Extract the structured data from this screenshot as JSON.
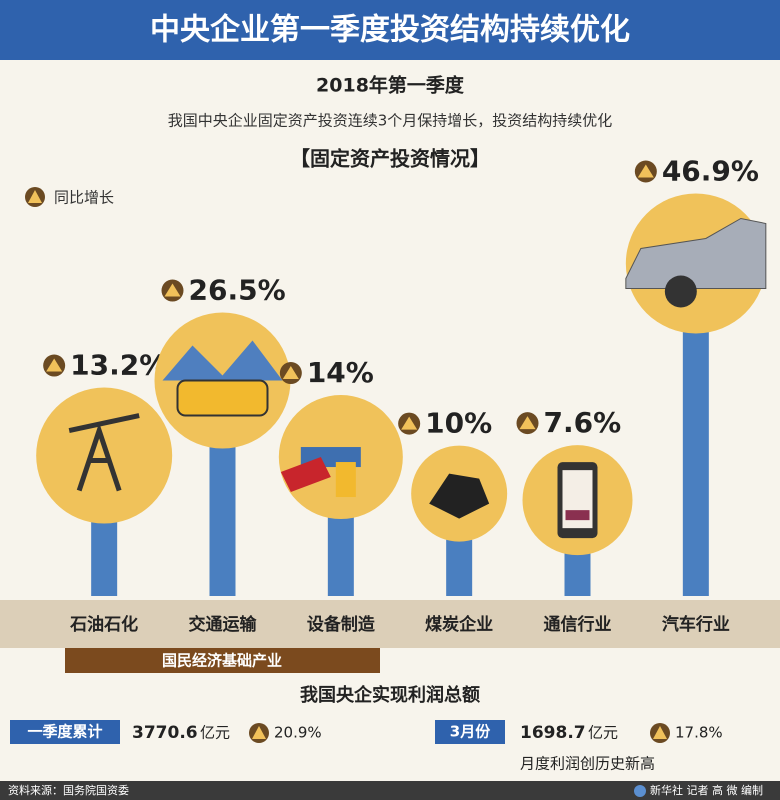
{
  "header": {
    "title": "中央企业第一季度投资结构持续优化",
    "period": "2018年第一季度",
    "subtitle": "我国中央企业固定资产投资连续3个月保持增长，投资结构持续优化"
  },
  "chart_data": {
    "type": "bar",
    "title": "【固定资产投资情况】",
    "legend_label": "同比增长",
    "categories": [
      "石油石化",
      "交通运输",
      "设备制造",
      "煤炭企业",
      "通信行业",
      "汽车行业"
    ],
    "values": [
      13.2,
      26.5,
      14,
      10,
      7.6,
      46.9
    ],
    "value_labels": [
      "13.2%",
      "26.5%",
      "14%",
      "10%",
      "7.6%",
      "46.9%"
    ],
    "color": "#4a7fc0",
    "ylim": [
      0,
      50
    ],
    "group_label": "国民经济基础产业"
  },
  "profit": {
    "title": "我国央企实现利润总额",
    "items": [
      {
        "tag": "一季度累计",
        "amount": "3770.6",
        "unit": "亿元",
        "growth": "20.9%"
      },
      {
        "tag": "3月份",
        "amount": "1698.7",
        "unit": "亿元",
        "growth": "17.8%"
      }
    ],
    "note": "月度利润创历史新高"
  },
  "footer": {
    "source": "资料来源：国务院国资委",
    "credit": "新华社 记者 高 微 编制"
  }
}
